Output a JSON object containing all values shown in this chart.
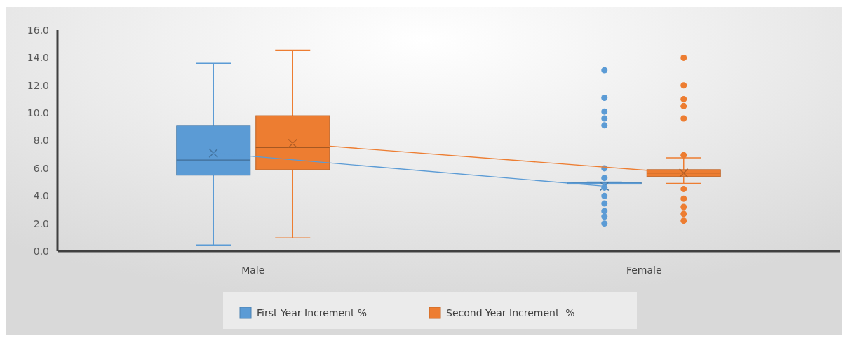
{
  "chart_data": {
    "type": "box",
    "categories": [
      "Male",
      "Female"
    ],
    "ylim": [
      0,
      16
    ],
    "yticks": [
      {
        "value": 0,
        "label": "0.0"
      },
      {
        "value": 2,
        "label": "2.0"
      },
      {
        "value": 4,
        "label": "4.0"
      },
      {
        "value": 6,
        "label": "6.0"
      },
      {
        "value": 8,
        "label": "8.0"
      },
      {
        "value": 10,
        "label": "10.0"
      },
      {
        "value": 12,
        "label": "12.0"
      },
      {
        "value": 14,
        "label": "14.0"
      },
      {
        "value": 16,
        "label": "16.0"
      }
    ],
    "grid": false,
    "legend": "bottom",
    "series": [
      {
        "name": "First Year Increment %",
        "color": "#5b9bd5",
        "boxes": [
          {
            "low": 0.45,
            "q1": 5.5,
            "median": 6.6,
            "q3": 9.1,
            "high": 13.6,
            "mean": 7.1
          },
          {
            "low": 4.9,
            "q1": 4.9,
            "median": 5.0,
            "q3": 5.0,
            "high": 5.0,
            "mean": 4.7,
            "outliers": [
              13.1,
              11.1,
              10.1,
              9.6,
              9.1,
              6.0,
              5.3,
              4.6,
              4.0,
              3.45,
              2.9,
              2.5,
              2.0
            ]
          }
        ]
      },
      {
        "name": "Second Year Increment  %",
        "color": "#ed7d31",
        "boxes": [
          {
            "low": 0.95,
            "q1": 5.9,
            "median": 7.5,
            "q3": 9.8,
            "high": 14.55,
            "mean": 7.8
          },
          {
            "low": 4.9,
            "q1": 5.4,
            "median": 5.65,
            "q3": 5.9,
            "high": 6.75,
            "mean": 5.65,
            "outliers": [
              14.0,
              12.0,
              11.0,
              10.5,
              9.6,
              6.95,
              4.5,
              3.8,
              3.2,
              2.7,
              2.2
            ]
          }
        ]
      },
      {
        "type": "line",
        "color": "#5b9bd5",
        "values": [
          7.1,
          4.7
        ]
      },
      {
        "type": "line",
        "color": "#ed7d31",
        "values": [
          7.8,
          5.65
        ]
      }
    ]
  }
}
